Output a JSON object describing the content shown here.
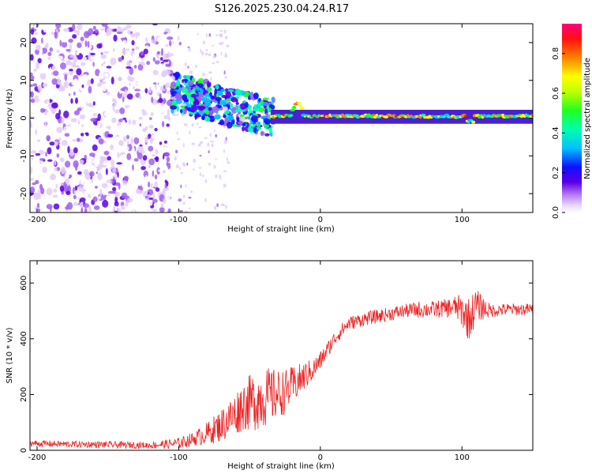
{
  "title": "S126.2025.230.04.24.R17",
  "colors": {
    "snr_line": "#ee2020",
    "spec_low": "#d8b8f8",
    "spec_mid": "#5b00e0",
    "spec_high": "#e0005c",
    "axis": "#000000"
  },
  "chart_data": [
    {
      "type": "heatmap",
      "name": "spectrogram",
      "xlabel": "Height of straight line (km)",
      "ylabel": "Frequency (Hz)",
      "xlim": [
        -205,
        150
      ],
      "ylim": [
        -25,
        25
      ],
      "xticks": [
        -200,
        -100,
        0,
        100
      ],
      "yticks": [
        -20,
        -10,
        0,
        10,
        20
      ],
      "description_regions": [
        {
          "x_range": [
            -205,
            -105
          ],
          "freq_range": [
            -25,
            25
          ],
          "level": "noise",
          "amplitude": 0.05
        },
        {
          "x_range": [
            -105,
            -35
          ],
          "freq_center": [
            6,
            2
          ],
          "level": "mixed",
          "amplitude": 0.4
        },
        {
          "x_range": [
            -35,
            150
          ],
          "freq_center": 0.5,
          "level": "line",
          "amplitude": 0.9
        }
      ],
      "colorbar": {
        "label": "Normalized spectral amplitude",
        "ticks": [
          "0.0",
          "0.2",
          "0.4",
          "0.6",
          "0.8"
        ],
        "range": [
          0,
          0.95
        ]
      }
    },
    {
      "type": "line",
      "name": "snr",
      "xlabel": "Height of straight line (km)",
      "ylabel": "SNR (10 * v/v)",
      "xlim": [
        -205,
        150
      ],
      "ylim": [
        0,
        680
      ],
      "xticks": [
        -200,
        -100,
        0,
        100
      ],
      "yticks": [
        0,
        200,
        400,
        600
      ],
      "series": [
        {
          "name": "SNR",
          "x": [
            -205,
            -180,
            -150,
            -120,
            -100,
            -90,
            -80,
            -70,
            -60,
            -55,
            -50,
            -45,
            -40,
            -35,
            -30,
            -25,
            -20,
            -15,
            -10,
            -5,
            0,
            5,
            10,
            15,
            20,
            30,
            40,
            50,
            60,
            70,
            80,
            90,
            95,
            100,
            105,
            110,
            120,
            130,
            140,
            150
          ],
          "values": [
            25,
            22,
            20,
            18,
            25,
            40,
            60,
            90,
            130,
            160,
            170,
            180,
            190,
            195,
            200,
            210,
            230,
            250,
            270,
            290,
            320,
            360,
            400,
            430,
            455,
            470,
            480,
            490,
            500,
            505,
            505,
            510,
            515,
            500,
            470,
            520,
            500,
            505,
            505,
            505
          ],
          "noise_amplitude": [
            12,
            12,
            12,
            12,
            20,
            25,
            40,
            60,
            80,
            90,
            100,
            110,
            110,
            100,
            90,
            80,
            70,
            60,
            50,
            40,
            35,
            30,
            28,
            26,
            25,
            25,
            25,
            25,
            25,
            30,
            30,
            35,
            40,
            60,
            80,
            60,
            25,
            22,
            22,
            22
          ]
        }
      ]
    }
  ]
}
